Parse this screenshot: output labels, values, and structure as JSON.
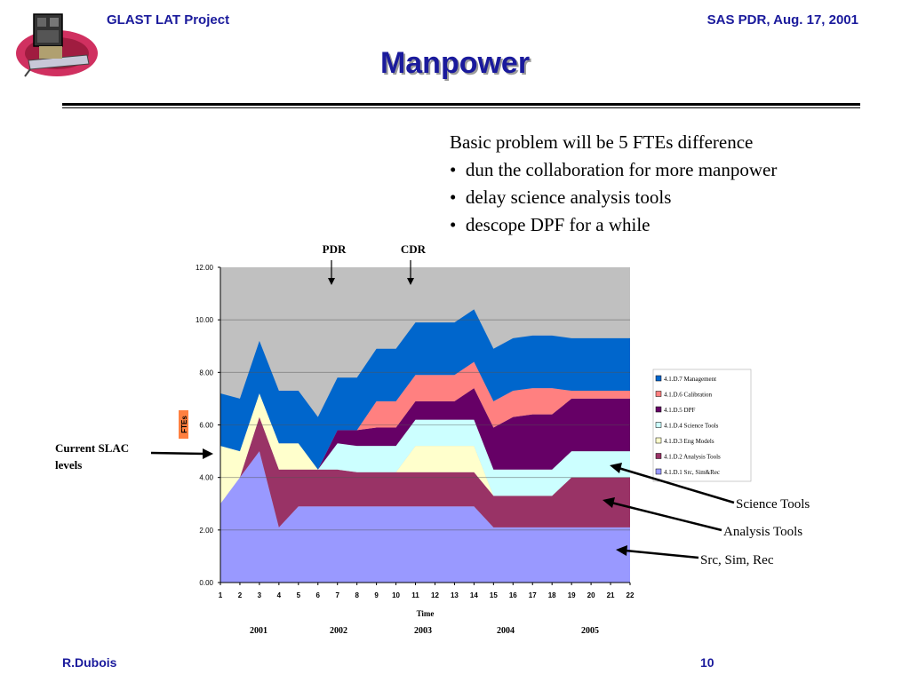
{
  "header": {
    "left": "GLAST LAT Project",
    "right": "SAS PDR, Aug. 17, 2001"
  },
  "title": "Manpower",
  "bullets": {
    "intro": "Basic problem will be 5 FTEs difference",
    "items": [
      "dun the collaboration for more manpower",
      "delay science analysis tools",
      "descope DPF for a while"
    ]
  },
  "annotations": {
    "pdr": "PDR",
    "cdr": "CDR",
    "current_slac": [
      "Current SLAC",
      "levels"
    ],
    "science_tools": "Science Tools",
    "analysis_tools": "Analysis Tools",
    "src_sim_rec": "Src, Sim, Rec"
  },
  "years": [
    "2001",
    "2002",
    "2003",
    "2004",
    "2005"
  ],
  "footer": {
    "left": "R.Dubois",
    "right": "10"
  },
  "chart_data": {
    "type": "area",
    "stacked": true,
    "xlabel": "Time",
    "ylabel": "FTEs",
    "ylim": [
      0,
      12
    ],
    "yticks": [
      "0.00",
      "2.00",
      "4.00",
      "6.00",
      "8.00",
      "10.00",
      "12.00"
    ],
    "x": [
      1,
      2,
      3,
      4,
      5,
      6,
      7,
      8,
      9,
      10,
      11,
      12,
      13,
      14,
      15,
      16,
      17,
      18,
      19,
      20,
      21,
      22
    ],
    "legend_position": "right",
    "series": [
      {
        "name": "4.1.D.1 Src, Sim&Rec",
        "color": "#9999ff",
        "values": [
          3.0,
          4.0,
          5.0,
          2.1,
          2.9,
          2.9,
          2.9,
          2.9,
          2.9,
          2.9,
          2.9,
          2.9,
          2.9,
          2.9,
          2.1,
          2.1,
          2.1,
          2.1,
          2.1,
          2.1,
          2.1,
          2.1
        ]
      },
      {
        "name": "4.1.D.2 Analysis Tools",
        "color": "#993366",
        "values": [
          0,
          0,
          1.3,
          2.2,
          1.4,
          1.4,
          1.4,
          1.3,
          1.3,
          1.3,
          1.3,
          1.3,
          1.3,
          1.3,
          1.2,
          1.2,
          1.2,
          1.2,
          1.9,
          1.9,
          1.9,
          1.9
        ]
      },
      {
        "name": "4.1.D.3 Eng Models",
        "color": "#ffffcc",
        "values": [
          2.2,
          1.0,
          0.9,
          1.0,
          1.0,
          0,
          0,
          0,
          0,
          0,
          1.0,
          1.0,
          1.0,
          1.0,
          0,
          0,
          0,
          0,
          0,
          0,
          0,
          0
        ]
      },
      {
        "name": "4.1.D.4 Science Tools",
        "color": "#ccffff",
        "values": [
          0,
          0,
          0,
          0,
          0,
          0,
          1.0,
          1.0,
          1.0,
          1.0,
          1.0,
          1.0,
          1.0,
          1.0,
          1.0,
          1.0,
          1.0,
          1.0,
          1.0,
          1.0,
          1.0,
          1.0
        ]
      },
      {
        "name": "4.1.D.5 DPF",
        "color": "#660066",
        "values": [
          0,
          0,
          0,
          0,
          0,
          0,
          0.5,
          0.6,
          0.7,
          0.7,
          0.7,
          0.7,
          0.7,
          1.2,
          1.6,
          2.0,
          2.1,
          2.1,
          2.0,
          2.0,
          2.0,
          2.0
        ]
      },
      {
        "name": "4.1.D.6 Calibration",
        "color": "#ff8080",
        "values": [
          0,
          0,
          0,
          0,
          0,
          0,
          0,
          0,
          1.0,
          1.0,
          1.0,
          1.0,
          1.0,
          1.0,
          1.0,
          1.0,
          1.0,
          1.0,
          0.3,
          0.3,
          0.3,
          0.3
        ]
      },
      {
        "name": "4.1.D.7 Management",
        "color": "#0066cc",
        "values": [
          2.0,
          2.0,
          2.0,
          2.0,
          2.0,
          2.0,
          2.0,
          2.0,
          2.0,
          2.0,
          2.0,
          2.0,
          2.0,
          2.0,
          2.0,
          2.0,
          2.0,
          2.0,
          2.0,
          2.0,
          2.0,
          2.0
        ]
      }
    ]
  }
}
